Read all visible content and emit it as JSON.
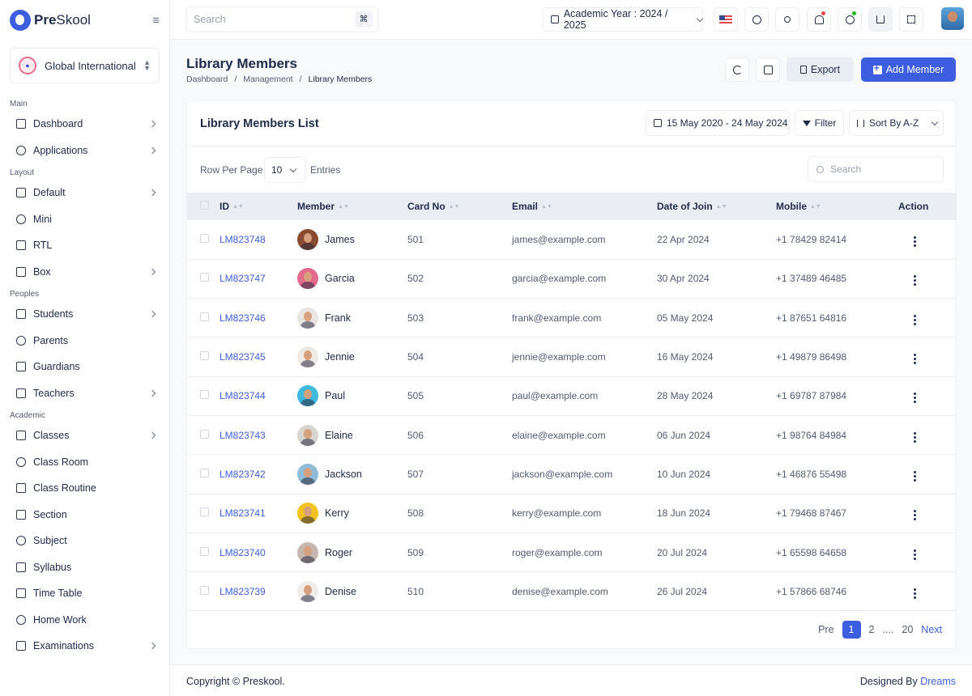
{
  "brand": {
    "bold": "Pre",
    "light": "Skool"
  },
  "school": {
    "name": "Global International"
  },
  "sidebar": {
    "sections": [
      {
        "title": "Main",
        "items": [
          {
            "label": "Dashboard",
            "icon": "dashboard-icon",
            "chevron": true
          },
          {
            "label": "Applications",
            "icon": "layers-icon",
            "chevron": true
          }
        ]
      },
      {
        "title": "Layout",
        "items": [
          {
            "label": "Default",
            "icon": "layout-sidebar-icon",
            "chevron": true
          },
          {
            "label": "Mini",
            "icon": "layout-mini-icon",
            "chevron": false
          },
          {
            "label": "RTL",
            "icon": "text-direction-icon",
            "chevron": false
          },
          {
            "label": "Box",
            "icon": "layout-box-icon",
            "chevron": true
          }
        ]
      },
      {
        "title": "Peoples",
        "items": [
          {
            "label": "Students",
            "icon": "school-cap-icon",
            "chevron": true
          },
          {
            "label": "Parents",
            "icon": "user-icon",
            "chevron": false
          },
          {
            "label": "Guardians",
            "icon": "user-shield-icon",
            "chevron": false
          },
          {
            "label": "Teachers",
            "icon": "users-icon",
            "chevron": true
          }
        ]
      },
      {
        "title": "Academic",
        "items": [
          {
            "label": "Classes",
            "icon": "presentation-icon",
            "chevron": true
          },
          {
            "label": "Class Room",
            "icon": "building-icon",
            "chevron": false
          },
          {
            "label": "Class Routine",
            "icon": "clock-book-icon",
            "chevron": false
          },
          {
            "label": "Section",
            "icon": "diamond-icon",
            "chevron": false
          },
          {
            "label": "Subject",
            "icon": "book-icon",
            "chevron": false
          },
          {
            "label": "Syllabus",
            "icon": "clipboard-icon",
            "chevron": false
          },
          {
            "label": "Time Table",
            "icon": "table-icon",
            "chevron": false
          },
          {
            "label": "Home Work",
            "icon": "notebook-icon",
            "chevron": false
          },
          {
            "label": "Examinations",
            "icon": "exam-icon",
            "chevron": true
          }
        ]
      }
    ]
  },
  "header": {
    "search_placeholder": "Search",
    "shortcut": "⌘",
    "academic_year": "Academic Year : 2024 / 2025",
    "icons": [
      "flag-us-icon",
      "plus-circle-icon",
      "sun-icon",
      "bell-icon",
      "chat-icon",
      "chart-icon",
      "fullscreen-icon"
    ],
    "notification_dot_color": "#e84646",
    "chat_dot_color": "#1abe17"
  },
  "page": {
    "title": "Library Members",
    "breadcrumb": [
      "Dashboard",
      "Management",
      "Library Members"
    ],
    "export_label": "Export",
    "add_label": "Add Member"
  },
  "card": {
    "title": "Library Members List",
    "date_range": "15 May 2020 - 24 May 2024",
    "filter_label": "Filter",
    "sort_label": "Sort By A-Z",
    "row_per_page_label": "Row Per Page",
    "row_per_page_value": "10",
    "entries_label": "Entries",
    "search_placeholder": "Search"
  },
  "table": {
    "columns": [
      "ID",
      "Member",
      "Card No",
      "Email",
      "Date of Join",
      "Mobile",
      "Action"
    ],
    "rows": [
      {
        "id": "LM823748",
        "member": "James",
        "card": "501",
        "email": "james@example.com",
        "doj": "22 Apr 2024",
        "mobile": "+1 78429 82414",
        "avatar_color": "#8a4a32"
      },
      {
        "id": "LM823747",
        "member": "Garcia",
        "card": "502",
        "email": "garcia@example.com",
        "doj": "30 Apr 2024",
        "mobile": "+1 37489 46485",
        "avatar_color": "#e56b8c"
      },
      {
        "id": "LM823746",
        "member": "Frank",
        "card": "503",
        "email": "frank@example.com",
        "doj": "05 May 2024",
        "mobile": "+1 87651 64816",
        "avatar_color": "#e9e6e2"
      },
      {
        "id": "LM823745",
        "member": "Jennie",
        "card": "504",
        "email": "jennie@example.com",
        "doj": "16 May 2024",
        "mobile": "+1 49879 86498",
        "avatar_color": "#efe9e4"
      },
      {
        "id": "LM823744",
        "member": "Paul",
        "card": "505",
        "email": "paul@example.com",
        "doj": "28 May 2024",
        "mobile": "+1 69787 87984",
        "avatar_color": "#3fb9dd"
      },
      {
        "id": "LM823743",
        "member": "Elaine",
        "card": "506",
        "email": "elaine@example.com",
        "doj": "06 Jun 2024",
        "mobile": "+1 98764 84984",
        "avatar_color": "#d8d4cf"
      },
      {
        "id": "LM823742",
        "member": "Jackson",
        "card": "507",
        "email": "jackson@example.com",
        "doj": "10 Jun 2024",
        "mobile": "+1 46876 55498",
        "avatar_color": "#8fbcd6"
      },
      {
        "id": "LM823741",
        "member": "Kerry",
        "card": "508",
        "email": "kerry@example.com",
        "doj": "18 Jun 2024",
        "mobile": "+1 79468 87467",
        "avatar_color": "#f4c21e"
      },
      {
        "id": "LM823740",
        "member": "Roger",
        "card": "509",
        "email": "roger@example.com",
        "doj": "20 Jul 2024",
        "mobile": "+1 65598 64658",
        "avatar_color": "#c5b7ad"
      },
      {
        "id": "LM823739",
        "member": "Denise",
        "card": "510",
        "email": "denise@example.com",
        "doj": "26 Jul 2024",
        "mobile": "+1 57866 68746",
        "avatar_color": "#f0ece8"
      }
    ]
  },
  "pagination": {
    "prev": "Pre",
    "pages": [
      "1",
      "2",
      "....",
      "20"
    ],
    "current": "1",
    "next": "Next"
  },
  "footer": {
    "copyright": "Copyright © Preskool.",
    "designed_by": "Designed By",
    "designer": "Dreams"
  },
  "colors": {
    "primary": "#3d5ee1",
    "text": "#202c4b",
    "muted": "#515b73",
    "border": "#e9edf4"
  }
}
